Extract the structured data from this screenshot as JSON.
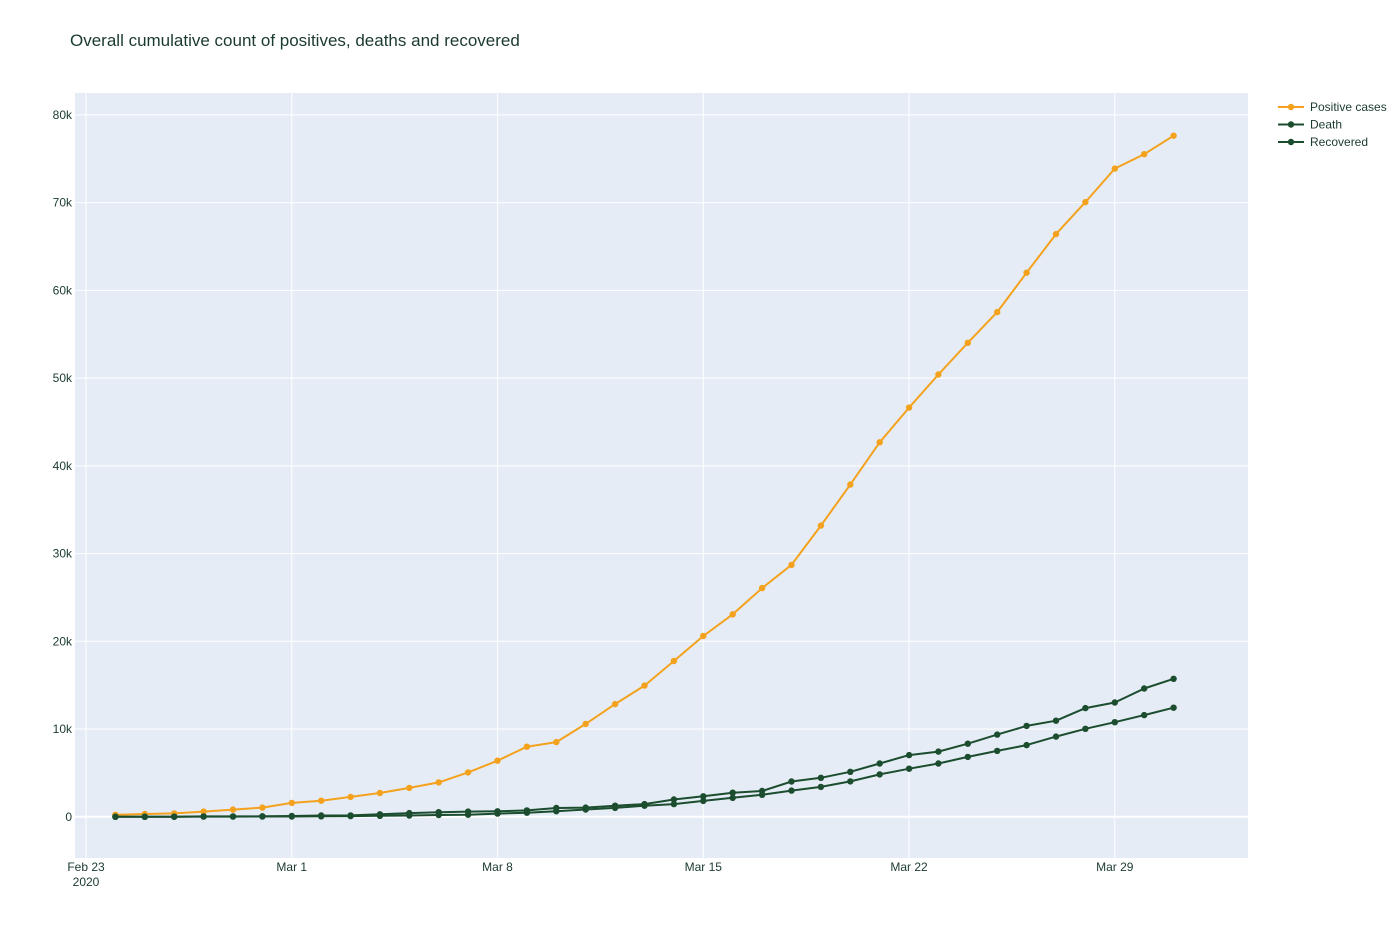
{
  "chart_data": {
    "type": "line",
    "title": "Overall cumulative count of positives, deaths and recovered",
    "xlabel": "",
    "ylabel": "",
    "x_range": [
      "2020-02-23",
      "2020-04-01"
    ],
    "ylim": [
      -4700,
      82500
    ],
    "x_ticks": [
      {
        "date": "2020-02-23",
        "label": "Feb 23",
        "sublabel": "2020"
      },
      {
        "date": "2020-03-01",
        "label": "Mar 1",
        "sublabel": ""
      },
      {
        "date": "2020-03-08",
        "label": "Mar 8",
        "sublabel": ""
      },
      {
        "date": "2020-03-15",
        "label": "Mar 15",
        "sublabel": ""
      },
      {
        "date": "2020-03-22",
        "label": "Mar 22",
        "sublabel": ""
      },
      {
        "date": "2020-03-29",
        "label": "Mar 29",
        "sublabel": ""
      }
    ],
    "y_ticks": [
      {
        "value": 0,
        "label": "0"
      },
      {
        "value": 10000,
        "label": "10k"
      },
      {
        "value": 20000,
        "label": "20k"
      },
      {
        "value": 30000,
        "label": "30k"
      },
      {
        "value": 40000,
        "label": "40k"
      },
      {
        "value": 50000,
        "label": "50k"
      },
      {
        "value": 60000,
        "label": "60k"
      },
      {
        "value": 70000,
        "label": "70k"
      },
      {
        "value": 80000,
        "label": "80k"
      }
    ],
    "grid": true,
    "legend_position": "top-right",
    "x": [
      "2020-02-24",
      "2020-02-25",
      "2020-02-26",
      "2020-02-27",
      "2020-02-28",
      "2020-02-29",
      "2020-03-01",
      "2020-03-02",
      "2020-03-03",
      "2020-03-04",
      "2020-03-05",
      "2020-03-06",
      "2020-03-07",
      "2020-03-08",
      "2020-03-09",
      "2020-03-10",
      "2020-03-11",
      "2020-03-12",
      "2020-03-13",
      "2020-03-14",
      "2020-03-15",
      "2020-03-16",
      "2020-03-17",
      "2020-03-18",
      "2020-03-19",
      "2020-03-20",
      "2020-03-21",
      "2020-03-22",
      "2020-03-23",
      "2020-03-24",
      "2020-03-25",
      "2020-03-26",
      "2020-03-27",
      "2020-03-28",
      "2020-03-29",
      "2020-03-30",
      "2020-03-31",
      "2020-04-01"
    ],
    "series": [
      {
        "name": "Positive cases",
        "color": "#f4a21d",
        "values": [
          221,
          311,
          385,
          588,
          821,
          1049,
          1577,
          1835,
          2263,
          2706,
          3296,
          3916,
          5061,
          6387,
          7985,
          8514,
          10590,
          12839,
          14955,
          17750,
          20603,
          23073,
          26062,
          28710,
          33190,
          37860,
          42681,
          46638,
          50418,
          54030,
          57521,
          62013,
          66414,
          70065,
          73880,
          75528,
          77635,
          null
        ]
      },
      {
        "name": "Death",
        "color": "#1b4d2e",
        "values": [
          7,
          10,
          12,
          17,
          21,
          29,
          34,
          52,
          79,
          107,
          148,
          197,
          233,
          366,
          463,
          631,
          827,
          1016,
          1266,
          1441,
          1809,
          2158,
          2503,
          2978,
          3405,
          4032,
          4825,
          5476,
          6077,
          6820,
          7503,
          8165,
          9134,
          10023,
          10779,
          11591,
          12428,
          null
        ]
      },
      {
        "name": "Recovered",
        "color": "#1b4d2e",
        "values": [
          1,
          1,
          3,
          45,
          46,
          50,
          83,
          149,
          160,
          276,
          414,
          523,
          589,
          622,
          724,
          1004,
          1045,
          1258,
          1439,
          1966,
          2335,
          2749,
          2941,
          4025,
          4440,
          5129,
          6072,
          7024,
          7432,
          8326,
          9362,
          10361,
          10950,
          12384,
          13030,
          14620,
          15729,
          null
        ]
      }
    ]
  }
}
